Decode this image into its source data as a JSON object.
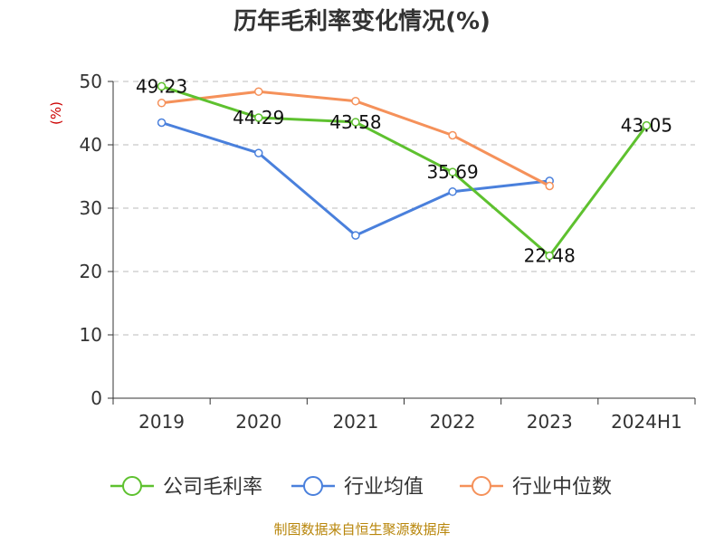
{
  "chart_data": {
    "type": "line",
    "title": "历年毛利率变化情况(%)",
    "ylabel": "(%)",
    "xlabel": "",
    "categories": [
      "2019",
      "2020",
      "2021",
      "2022",
      "2023",
      "2024H1"
    ],
    "ylim": [
      0,
      50
    ],
    "yticks": [
      0,
      10,
      20,
      30,
      40,
      50
    ],
    "grid": true,
    "legend_position": "bottom",
    "series": [
      {
        "name": "公司毛利率",
        "color": "#5ec12f",
        "values": [
          49.23,
          44.29,
          43.58,
          35.69,
          22.48,
          43.05
        ],
        "labels": [
          "49.23",
          "44.29",
          "43.58",
          "35.69",
          "22.48",
          "43.05"
        ]
      },
      {
        "name": "行业均值",
        "color": "#4a80dc",
        "values": [
          43.5,
          38.7,
          25.7,
          32.6,
          34.3,
          null
        ]
      },
      {
        "name": "行业中位数",
        "color": "#f5915a",
        "values": [
          46.6,
          48.4,
          46.9,
          41.5,
          33.5,
          null
        ]
      }
    ],
    "source": "制图数据来自恒生聚源数据库"
  }
}
